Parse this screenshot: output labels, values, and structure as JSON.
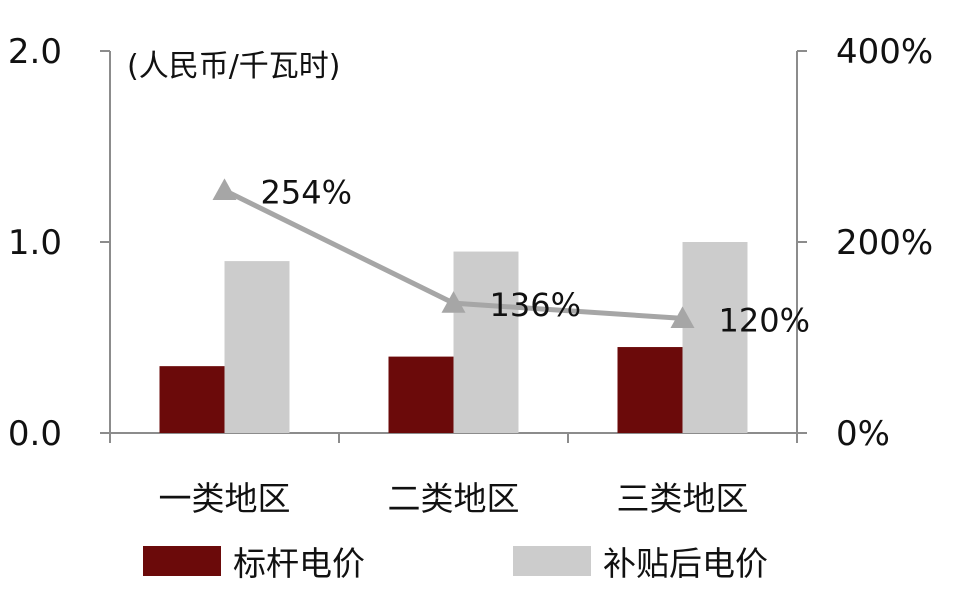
{
  "chart_data": {
    "type": "bar",
    "unit_label": "(人民币/千瓦时)",
    "categories": [
      "一类地区",
      "二类地区",
      "三类地区"
    ],
    "series": [
      {
        "name": "标杆电价",
        "kind": "bar",
        "axis": "left",
        "color": "#6B0A0A",
        "values": [
          0.35,
          0.4,
          0.45
        ]
      },
      {
        "name": "补贴后电价",
        "kind": "bar",
        "axis": "left",
        "color": "#CCCCCC",
        "values": [
          0.9,
          0.95,
          1.0
        ]
      },
      {
        "kind": "line",
        "axis": "right",
        "color": "#A6A6A6",
        "marker": "triangle",
        "values": [
          254,
          136,
          120
        ],
        "labels": [
          "254%",
          "136%",
          "120%"
        ]
      }
    ],
    "left_axis": {
      "ylim": [
        0,
        2.0
      ],
      "ticks": [
        0.0,
        1.0,
        2.0
      ],
      "tick_labels": [
        "0.0",
        "1.0",
        "2.0"
      ]
    },
    "right_axis": {
      "ylim": [
        0,
        400
      ],
      "ticks": [
        0,
        200,
        400
      ],
      "tick_labels": [
        "0%",
        "200%",
        "400%"
      ]
    },
    "legend_position": "bottom",
    "grid": false
  }
}
